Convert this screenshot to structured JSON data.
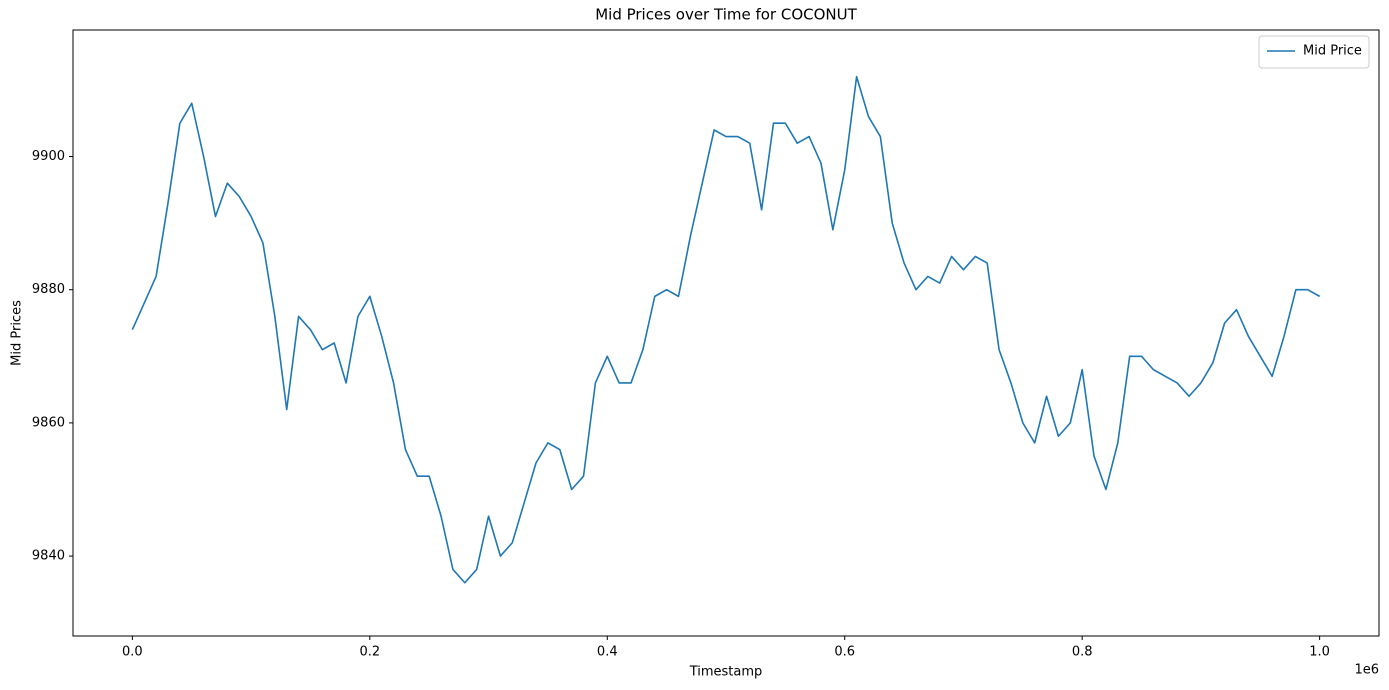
{
  "chart_data": {
    "type": "line",
    "title": "Mid Prices over Time for COCONUT",
    "x_label": "Timestamp",
    "y_label": "Mid Prices",
    "x_offset_text": "1e6",
    "x": [
      0,
      10000,
      20000,
      30000,
      40000,
      50000,
      60000,
      70000,
      80000,
      90000,
      100000,
      110000,
      120000,
      130000,
      140000,
      150000,
      160000,
      170000,
      180000,
      190000,
      200000,
      210000,
      220000,
      230000,
      240000,
      250000,
      260000,
      270000,
      280000,
      290000,
      300000,
      310000,
      320000,
      330000,
      340000,
      350000,
      360000,
      370000,
      380000,
      390000,
      400000,
      410000,
      420000,
      430000,
      440000,
      450000,
      460000,
      470000,
      480000,
      490000,
      500000,
      510000,
      520000,
      530000,
      540000,
      550000,
      560000,
      570000,
      580000,
      590000,
      600000,
      610000,
      620000,
      630000,
      640000,
      650000,
      660000,
      670000,
      680000,
      690000,
      700000,
      710000,
      720000,
      730000,
      740000,
      750000,
      760000,
      770000,
      780000,
      790000,
      800000,
      810000,
      820000,
      830000,
      840000,
      850000,
      860000,
      870000,
      880000,
      890000,
      900000,
      910000,
      920000,
      930000,
      940000,
      950000,
      960000,
      970000,
      980000,
      990000,
      1000000
    ],
    "series": [
      {
        "name": "Mid Price",
        "color": "#1f77b4",
        "values": [
          9874,
          9878,
          9882,
          9893,
          9905,
          9908,
          9900,
          9891,
          9896,
          9894,
          9891,
          9887,
          9876,
          9862,
          9876,
          9874,
          9871,
          9872,
          9866,
          9876,
          9879,
          9873,
          9866,
          9856,
          9852,
          9852,
          9846,
          9838,
          9836,
          9838,
          9846,
          9840,
          9842,
          9848,
          9854,
          9857,
          9856,
          9850,
          9852,
          9866,
          9870,
          9866,
          9866,
          9871,
          9879,
          9880,
          9879,
          9888,
          9896,
          9904,
          9903,
          9903,
          9902,
          9892,
          9905,
          9905,
          9902,
          9903,
          9899,
          9889,
          9898,
          9912,
          9906,
          9903,
          9890,
          9884,
          9880,
          9882,
          9881,
          9885,
          9883,
          9885,
          9884,
          9871,
          9866,
          9860,
          9857,
          9864,
          9858,
          9860,
          9868,
          9855,
          9850,
          9857,
          9870,
          9870,
          9868,
          9867,
          9866,
          9864,
          9866,
          9869,
          9875,
          9877,
          9873,
          9870,
          9867,
          9873,
          9880,
          9880,
          9879
        ]
      }
    ],
    "xlim": [
      -50000,
      1050000
    ],
    "ylim": [
      9828,
      9919
    ],
    "xticks": [
      {
        "value": 0,
        "label": "0.0"
      },
      {
        "value": 200000,
        "label": "0.2"
      },
      {
        "value": 400000,
        "label": "0.4"
      },
      {
        "value": 600000,
        "label": "0.6"
      },
      {
        "value": 800000,
        "label": "0.8"
      },
      {
        "value": 1000000,
        "label": "1.0"
      }
    ],
    "yticks": [
      9840,
      9860,
      9880,
      9900
    ],
    "grid": false,
    "legend": "upper right"
  }
}
